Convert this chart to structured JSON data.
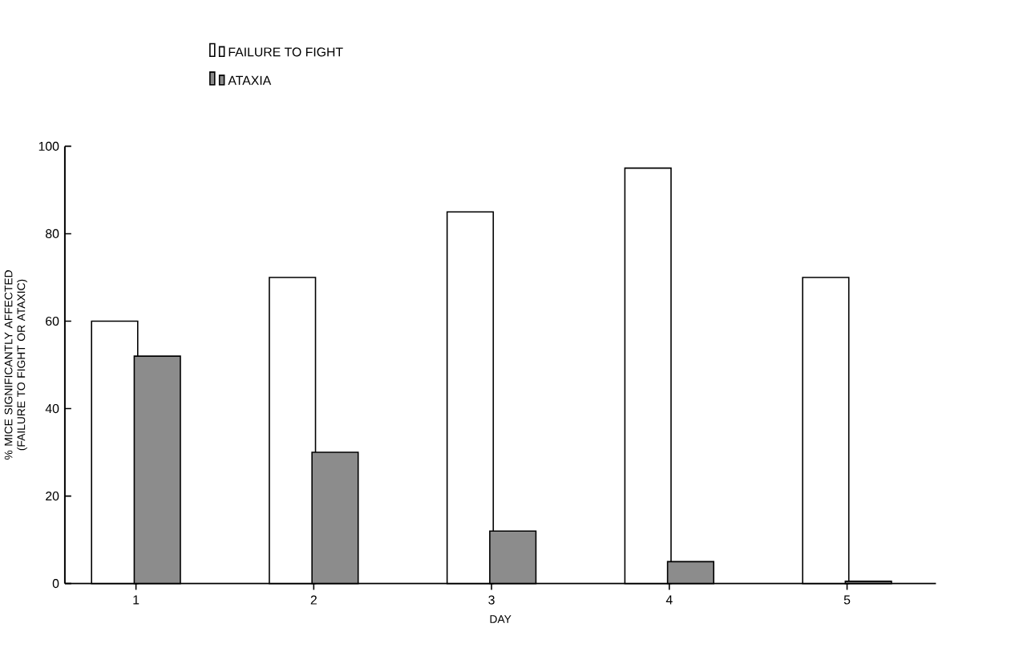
{
  "chart_data": {
    "type": "bar",
    "xlabel": "DAY",
    "ylabel": "% MICE SIGNIFICANTLY AFFECTED (FAILURE TO FIGHT OR ATAXIC)",
    "categories": [
      "1",
      "2",
      "3",
      "4",
      "5"
    ],
    "series": [
      {
        "name": "FAILURE TO FIGHT",
        "color": "#ffffff",
        "values": [
          60,
          70,
          85,
          95,
          70
        ]
      },
      {
        "name": "ATAXIA",
        "color": "#8c8c8c",
        "values": [
          52,
          30,
          12,
          5,
          0.5
        ]
      }
    ],
    "ylim": [
      0,
      100
    ],
    "yticks": [
      0,
      20,
      40,
      60,
      80,
      100
    ],
    "legend": "top left",
    "grid": false
  }
}
